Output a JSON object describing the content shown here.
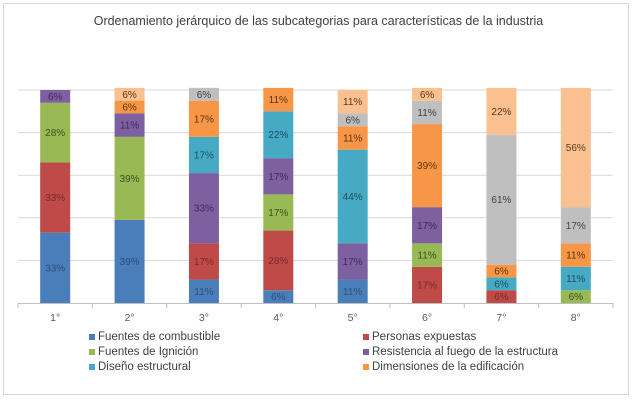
{
  "chart_data": {
    "type": "bar",
    "stacked": true,
    "title": "Ordenamiento jerárquico de las subcategorias para características de la industria",
    "xlabel": "",
    "ylabel": "",
    "ylim": [
      0,
      100
    ],
    "grid": true,
    "legend_position": "bottom",
    "categories": [
      "1°",
      "2°",
      "3°",
      "4°",
      "5°",
      "6°",
      "7°",
      "8°"
    ],
    "series": [
      {
        "name": "Fuentes de combustible",
        "color": "#4a7ebb",
        "label_color": "#2e4f78",
        "values": [
          33,
          39,
          11,
          6,
          11,
          0,
          0,
          0
        ]
      },
      {
        "name": "Personas expuestas",
        "color": "#be4b48",
        "label_color": "#7a2a28",
        "values": [
          33,
          0,
          17,
          28,
          0,
          17,
          6,
          0
        ]
      },
      {
        "name": "Fuentes de Ignición",
        "color": "#98b954",
        "label_color": "#3e4f1e",
        "values": [
          28,
          39,
          0,
          17,
          0,
          11,
          0,
          6
        ]
      },
      {
        "name": "Resistencia al fuego de la estructura",
        "color": "#7d60a0",
        "label_color": "#3f2c57",
        "values": [
          6,
          11,
          33,
          17,
          17,
          17,
          0,
          0
        ]
      },
      {
        "name": "Diseño estructural",
        "color": "#46aac5",
        "label_color": "#1f4f5e",
        "values": [
          0,
          0,
          17,
          22,
          44,
          0,
          6,
          11
        ]
      },
      {
        "name": "Dimensiones de la edificación",
        "color": "#f79646",
        "label_color": "#5a3310",
        "values": [
          0,
          6,
          17,
          11,
          11,
          39,
          6,
          11
        ]
      },
      {
        "name": "",
        "color": "#bfbfbf",
        "label_color": "#404040",
        "values": [
          0,
          0,
          6,
          0,
          6,
          11,
          61,
          17
        ]
      },
      {
        "name": "",
        "color": "#fac090",
        "label_color": "#5a3a1a",
        "values": [
          0,
          6,
          0,
          0,
          11,
          6,
          22,
          56
        ]
      }
    ]
  }
}
